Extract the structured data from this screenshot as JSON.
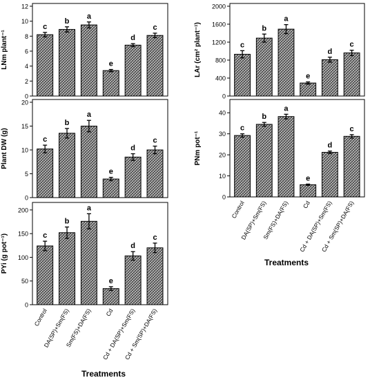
{
  "chart_data": [
    {
      "type": "bar",
      "panel": "top-left",
      "ylabel": "LNm plant⁻¹",
      "ylim": [
        0,
        12
      ],
      "yticks": [
        0,
        2,
        4,
        6,
        8,
        10,
        12
      ],
      "categories": [
        "Control",
        "DA(SP)+Sm(FS)",
        "Sm(FS)+DA(FS)",
        "Cd",
        "Cd + DA(SP)+Sm(FS)",
        "Cd + Sm(SP)+DA(FS)"
      ],
      "show_category_labels": false,
      "values": [
        8.2,
        8.9,
        9.5,
        3.4,
        6.8,
        8.1
      ],
      "errors": [
        0.3,
        0.35,
        0.4,
        0.15,
        0.2,
        0.3
      ],
      "letters": [
        "c",
        "b",
        "a",
        "e",
        "d",
        "c"
      ]
    },
    {
      "type": "bar",
      "panel": "middle-left",
      "ylabel": "Plant DW (g)",
      "ylim": [
        0,
        20
      ],
      "yticks": [
        0,
        5,
        10,
        15,
        20
      ],
      "categories": [
        "Control",
        "DA(SP)+Sm(FS)",
        "Sm(FS)+DA(FS)",
        "Cd",
        "Cd + DA(SP)+Sm(FS)",
        "Cd + Sm(SP)+DA(FS)"
      ],
      "show_category_labels": false,
      "values": [
        10.2,
        13.5,
        15.0,
        3.9,
        8.5,
        10.0
      ],
      "errors": [
        0.8,
        1.0,
        1.2,
        0.35,
        0.7,
        0.8
      ],
      "letters": [
        "c",
        "b",
        "a",
        "e",
        "d",
        "c"
      ]
    },
    {
      "type": "bar",
      "panel": "bottom-left",
      "ylabel": "PYi (g pot⁻¹)",
      "xlabel": "Treatments",
      "ylim": [
        0,
        210
      ],
      "yticks": [
        0,
        50,
        100,
        150,
        200
      ],
      "categories": [
        "Control",
        "DA(SP)+Sm(FS)",
        "Sm(FS)+DA(FS)",
        "Cd",
        "Cd + DA(SP)+Sm(FS)",
        "Cd + Sm(SP)+DA(FS)"
      ],
      "show_category_labels": true,
      "values": [
        124,
        152,
        176,
        34,
        103,
        120
      ],
      "errors": [
        10,
        12,
        16,
        4,
        9,
        10
      ],
      "letters": [
        "c",
        "b",
        "a",
        "e",
        "d",
        "c"
      ]
    },
    {
      "type": "bar",
      "panel": "top-right",
      "ylabel": "LAr (cm² plant⁻¹)",
      "ylim": [
        0,
        2000
      ],
      "yticks": [
        0,
        400,
        800,
        1200,
        1600,
        2000
      ],
      "categories": [
        "Control",
        "DA(SP)+Sm(FS)",
        "Sm(FS)+DA(FS)",
        "Cd",
        "Cd + DA(SP)+Sm(FS)",
        "Cd + Sm(SP)+DA(FS)"
      ],
      "show_category_labels": false,
      "values": [
        930,
        1290,
        1490,
        290,
        810,
        960
      ],
      "errors": [
        80,
        90,
        100,
        25,
        55,
        60
      ],
      "letters": [
        "c",
        "b",
        "a",
        "e",
        "d",
        "c"
      ]
    },
    {
      "type": "bar",
      "panel": "bottom-right",
      "ylabel": "PNm pot⁻¹",
      "xlabel": "Treatments",
      "ylim": [
        0,
        45
      ],
      "yticks": [
        0,
        10,
        20,
        30,
        40
      ],
      "categories": [
        "Control",
        "DA(SP)+Sm(FS)",
        "Sm(FS)+DA(FS)",
        "Cd",
        "Cd + DA(SP)+Sm(FS)",
        "Cd + Sm(SP)+DA(FS)"
      ],
      "show_category_labels": true,
      "values": [
        29.2,
        34.5,
        38.2,
        5.8,
        21.2,
        28.8
      ],
      "errors": [
        0.8,
        0.9,
        1.1,
        0.3,
        0.6,
        0.8
      ],
      "letters": [
        "c",
        "b",
        "a",
        "e",
        "d",
        "c"
      ]
    }
  ]
}
